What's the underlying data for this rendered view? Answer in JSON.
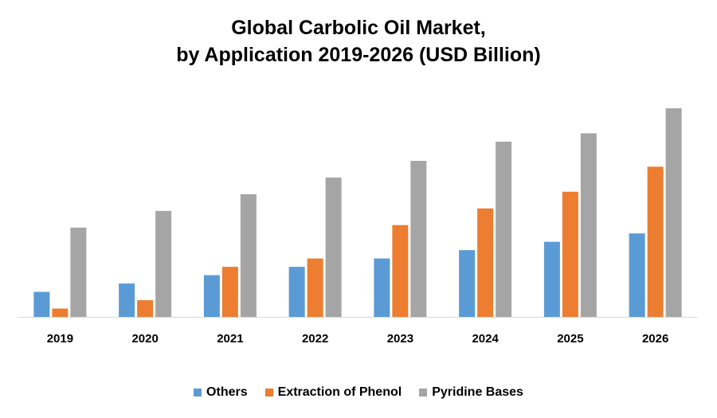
{
  "chart_data": {
    "type": "bar",
    "title_line1": "Global Carbolic Oil Market,",
    "title_line2": "by Application 2019-2026 (USD Billion)",
    "categories": [
      "2019",
      "2020",
      "2021",
      "2022",
      "2023",
      "2024",
      "2025",
      "2026"
    ],
    "series": [
      {
        "name": "Others",
        "color": "#5B9BD5",
        "values": [
          0.3,
          0.4,
          0.5,
          0.6,
          0.7,
          0.8,
          0.9,
          1.0
        ]
      },
      {
        "name": "Extraction of Phenol",
        "color": "#ED7D31",
        "values": [
          0.1,
          0.2,
          0.6,
          0.7,
          1.1,
          1.3,
          1.5,
          1.8
        ]
      },
      {
        "name": "Pyridine Bases",
        "color": "#A5A5A5",
        "values": [
          1.07,
          1.27,
          1.47,
          1.67,
          1.87,
          2.1,
          2.2,
          2.5
        ]
      }
    ],
    "ylim": [
      0,
      2.5
    ],
    "grid": false,
    "legend_position": "bottom"
  }
}
